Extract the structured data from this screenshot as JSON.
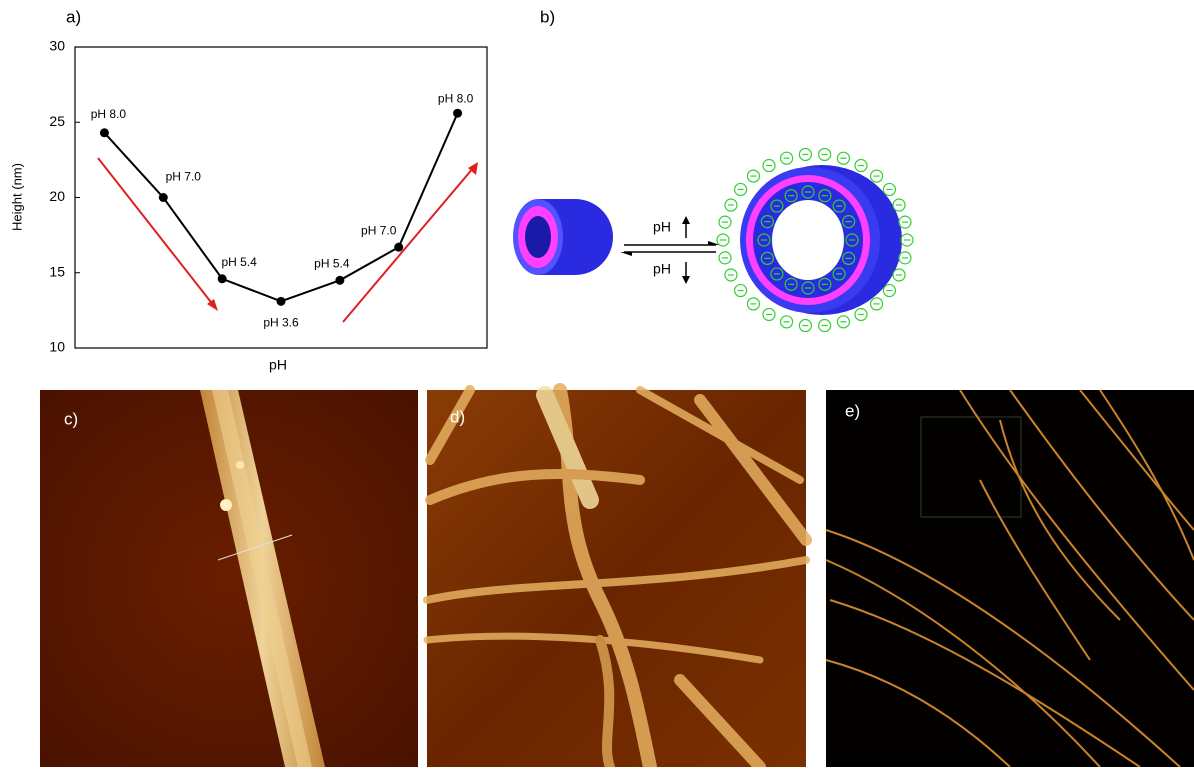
{
  "panel_labels": [
    "a)",
    "b)",
    "c)",
    "d)",
    "e)"
  ],
  "chart_data": {
    "type": "line",
    "ylabel": "Height (nm)",
    "xlabel": "pH",
    "categories": [
      "pH 8.0",
      "pH 7.0",
      "pH 5.4",
      "pH 3.6",
      "pH 5.4",
      "pH 7.0",
      "pH 8.0"
    ],
    "values": [
      24.3,
      20.0,
      14.6,
      13.1,
      14.5,
      16.7,
      25.6
    ],
    "color": "#000000",
    "ylim": [
      10,
      30
    ],
    "yticks": [
      10,
      15,
      20,
      25,
      30
    ]
  },
  "diagram": {
    "top_label": "pH",
    "bottom_label": "pH"
  }
}
